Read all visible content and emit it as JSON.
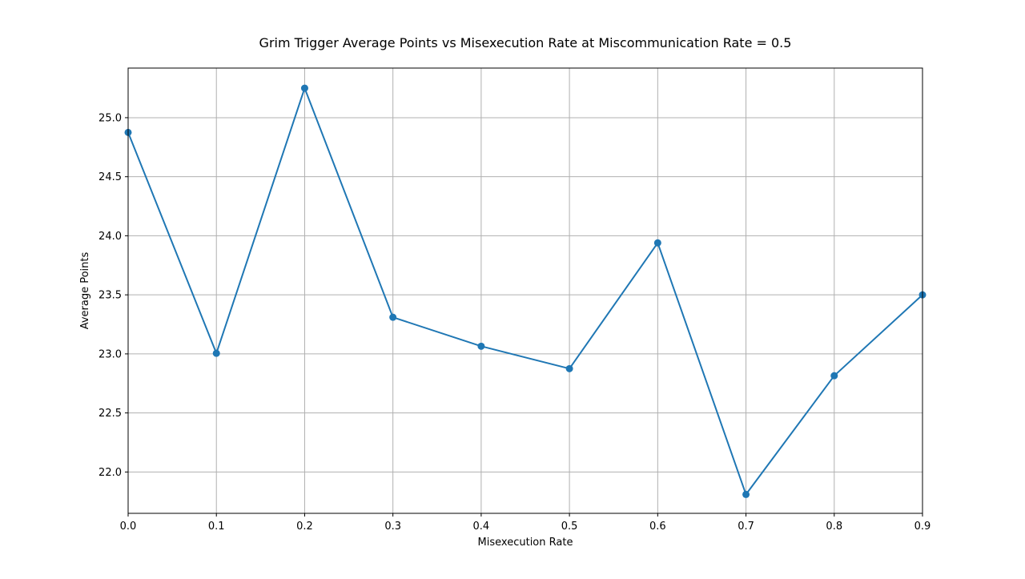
{
  "chart_data": {
    "type": "line",
    "title": "Grim Trigger Average Points vs Misexecution Rate at Miscommunication Rate = 0.5",
    "xlabel": "Misexecution Rate",
    "ylabel": "Average Points",
    "x": [
      0.0,
      0.1,
      0.2,
      0.3,
      0.4,
      0.5,
      0.6,
      0.7,
      0.8,
      0.9
    ],
    "series": [
      {
        "values": [
          24.875,
          23.005,
          25.25,
          23.31,
          23.065,
          22.875,
          23.94,
          21.81,
          22.815,
          23.5
        ],
        "color": "#1f77b4",
        "marker": "circle"
      }
    ],
    "xlim": [
      0.0,
      0.9
    ],
    "ylim": [
      21.65,
      25.42
    ],
    "xticks": [
      "0.0",
      "0.1",
      "0.2",
      "0.3",
      "0.4",
      "0.5",
      "0.6",
      "0.7",
      "0.8",
      "0.9"
    ],
    "yticks": [
      "22.0",
      "22.5",
      "23.0",
      "23.5",
      "24.0",
      "24.5",
      "25.0"
    ],
    "grid": true,
    "legend": "none"
  }
}
